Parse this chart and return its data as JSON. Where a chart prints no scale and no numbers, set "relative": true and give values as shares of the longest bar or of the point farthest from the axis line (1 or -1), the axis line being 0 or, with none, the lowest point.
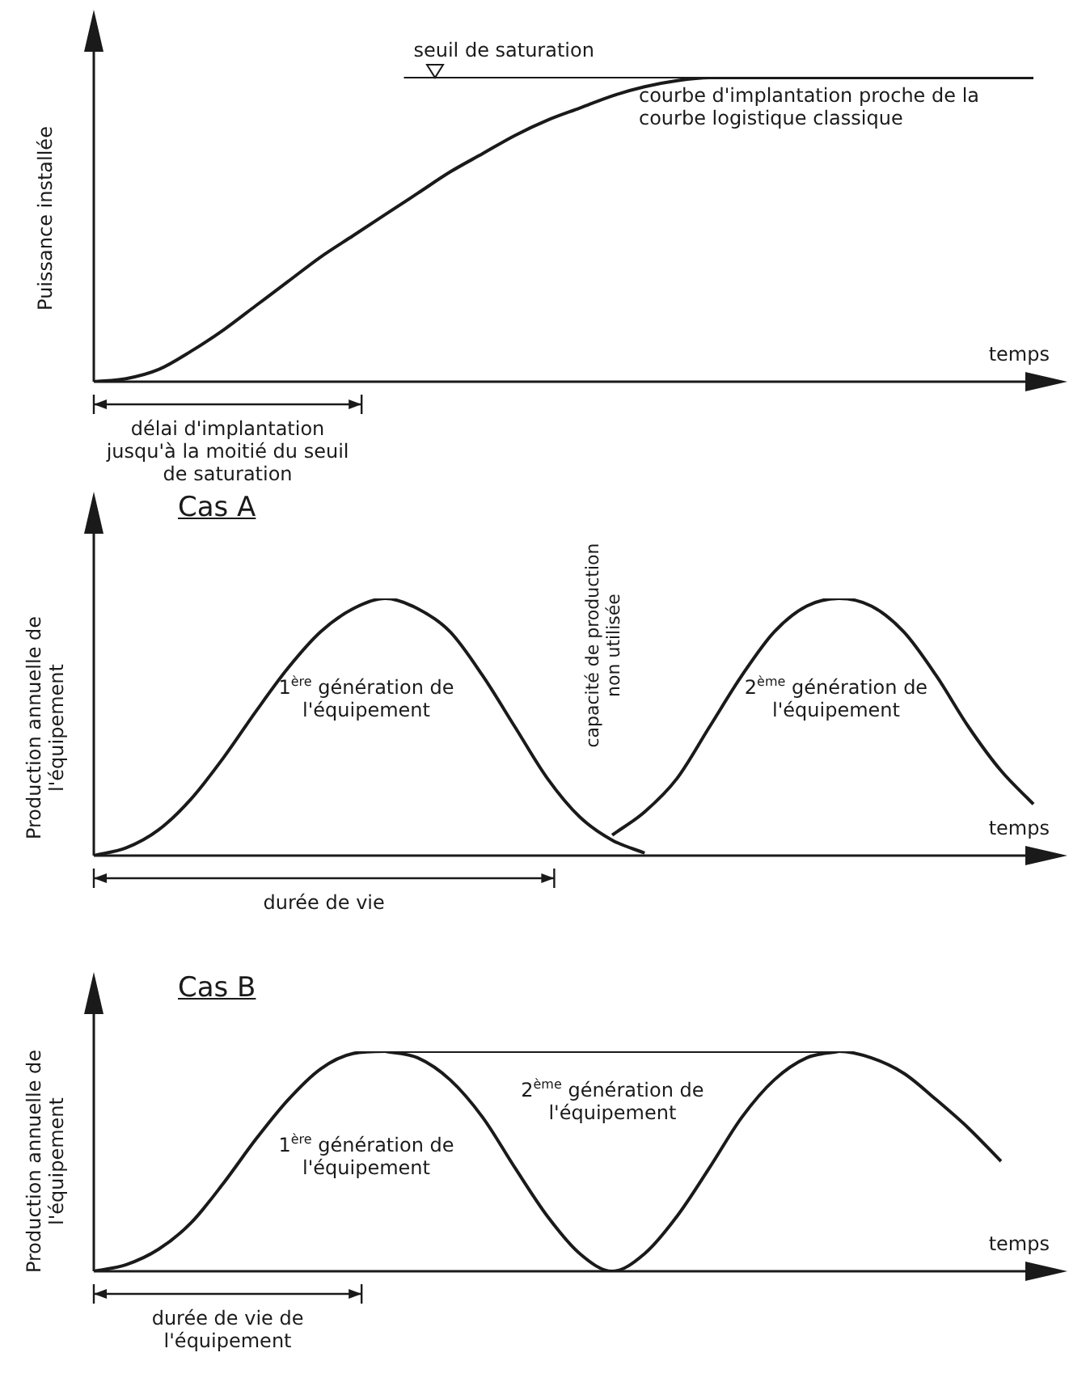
{
  "chart_data": [
    {
      "type": "line",
      "relative": true,
      "ylabel": "Puissance installée",
      "xlabel": "temps",
      "marker": "none",
      "line_style": "solid",
      "categories": [
        null,
        null,
        null,
        null,
        null,
        null,
        null,
        null,
        null,
        null,
        null,
        null,
        null,
        null,
        null,
        null,
        null,
        null,
        null,
        null,
        null,
        null,
        null,
        null,
        null,
        null,
        null,
        null,
        null,
        null
      ],
      "series": [
        {
          "color": "#1a1a1a",
          "values": [
            0,
            0.01,
            0.04,
            0.1,
            0.17,
            0.25,
            0.33,
            0.41,
            0.48,
            0.55,
            0.62,
            0.69,
            0.75,
            0.81,
            0.86,
            0.9,
            0.94,
            0.97,
            0.99,
            1,
            1,
            1,
            1,
            1,
            1,
            1,
            1,
            1,
            1,
            1
          ]
        }
      ],
      "ref_lines": [
        {
          "axis": "y",
          "value": 1,
          "label": "seuil de saturation",
          "color": "#1a1a1a"
        }
      ],
      "annotations": [
        "courbe d'implantation proche de la courbe logistique classique",
        "délai d'implantation jusqu'à la moitié du seuil de saturation"
      ]
    },
    {
      "type": "line",
      "relative": true,
      "title": "Cas A",
      "ylabel": "Production annuelle de l'équipement",
      "xlabel": "temps",
      "marker": "none",
      "line_style": "solid",
      "categories": [
        null,
        null,
        null,
        null,
        null,
        null,
        null,
        null,
        null,
        null,
        null,
        null,
        null,
        null,
        null,
        null,
        null,
        null,
        null,
        null,
        null,
        null,
        null,
        null,
        null,
        null,
        null,
        null,
        null,
        null
      ],
      "series": [
        {
          "color": "#1a1a1a",
          "values": [
            0,
            0.03,
            0.1,
            0.22,
            0.38,
            0.56,
            0.73,
            0.87,
            0.96,
            1,
            0.96,
            0.87,
            0.7,
            0.5,
            0.3,
            0.15,
            0.06,
            0.01,
            null,
            null,
            null,
            null,
            null,
            null,
            null,
            null,
            null,
            null,
            null,
            null
          ]
        },
        {
          "color": "#1a1a1a",
          "values": [
            null,
            null,
            null,
            null,
            null,
            null,
            null,
            null,
            null,
            null,
            null,
            null,
            null,
            null,
            null,
            null,
            0.08,
            0.17,
            0.3,
            0.5,
            0.7,
            0.87,
            0.97,
            1,
            0.97,
            0.87,
            0.7,
            0.5,
            0.33,
            0.2
          ]
        }
      ],
      "annotations": [
        "1$^{ère}$ génération de l'équipement",
        "2$^{ème}$ génération de l'équipement",
        "capacité de production non utilisée",
        "durée de vie"
      ]
    },
    {
      "type": "line",
      "relative": true,
      "title": "Cas B",
      "ylabel": "Production annuelle de l'équipement",
      "xlabel": "temps",
      "marker": "none",
      "line_style": "solid",
      "categories": [
        null,
        null,
        null,
        null,
        null,
        null,
        null,
        null,
        null,
        null,
        null,
        null,
        null,
        null,
        null,
        null,
        null,
        null,
        null,
        null,
        null,
        null,
        null,
        null,
        null,
        null,
        null,
        null,
        null,
        null
      ],
      "series": [
        {
          "color": "#1a1a1a",
          "values": [
            0,
            0.03,
            0.1,
            0.22,
            0.4,
            0.6,
            0.78,
            0.92,
            0.99,
            1,
            1,
            1,
            1,
            1,
            1,
            1,
            1,
            1,
            1,
            1,
            1,
            1,
            1,
            1,
            0.97,
            0.9,
            0.78,
            0.65,
            0.5,
            null
          ]
        },
        {
          "color": "#1a1a1a",
          "values": [
            null,
            null,
            null,
            null,
            null,
            null,
            null,
            null,
            null,
            1,
            0.97,
            0.87,
            0.7,
            0.47,
            0.25,
            0.08,
            0,
            0.08,
            0.25,
            0.47,
            0.7,
            0.87,
            0.97,
            1,
            null,
            null,
            null,
            null,
            null,
            null
          ]
        }
      ],
      "annotations": [
        "1$^{ère}$ génération de l'équipement",
        "2$^{ème}$ génération de l'équipement",
        "durée de vie de l'équipement"
      ]
    }
  ]
}
